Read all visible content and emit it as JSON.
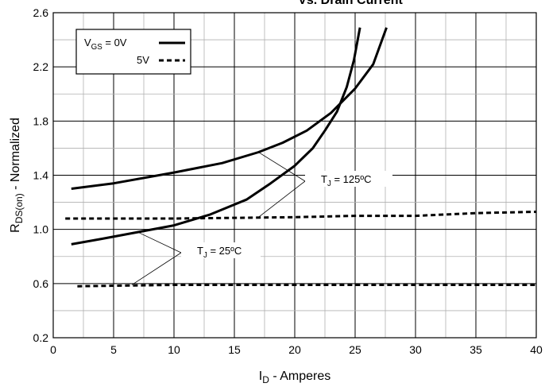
{
  "chart_data": {
    "type": "line",
    "title": "Vs. Drain Current",
    "xlabel": "I_D - Amperes",
    "ylabel": "R_DS(on) - Normalized",
    "xlim": [
      0,
      40
    ],
    "ylim": [
      0.2,
      2.6
    ],
    "x_ticks": [
      "0",
      "5",
      "10",
      "15",
      "20",
      "25",
      "30",
      "35",
      "40"
    ],
    "y_ticks": [
      "0.2",
      "0.6",
      "1.0",
      "1.4",
      "1.8",
      "2.2",
      "2.6"
    ],
    "grid": true,
    "legend": {
      "position": "top-left",
      "entries": [
        {
          "label": "V_GS = 0V",
          "style": "solid"
        },
        {
          "label": "5V",
          "style": "dashed"
        }
      ]
    },
    "annotations": [
      {
        "text": "T_J = 125ºC"
      },
      {
        "text": "T_J = 25ºC"
      }
    ],
    "series": [
      {
        "style": "solid",
        "group": "T_J = 125ºC",
        "vgs": "0V",
        "points": [
          [
            1.5,
            1.3
          ],
          [
            5,
            1.34
          ],
          [
            10,
            1.42
          ],
          [
            14,
            1.49
          ],
          [
            17,
            1.57
          ],
          [
            19,
            1.64
          ],
          [
            21,
            1.73
          ],
          [
            23,
            1.86
          ],
          [
            25,
            2.04
          ],
          [
            26.5,
            2.22
          ],
          [
            27.6,
            2.49
          ]
        ]
      },
      {
        "style": "solid",
        "group": "T_J = 25ºC",
        "vgs": "0V",
        "points": [
          [
            1.5,
            0.89
          ],
          [
            4,
            0.93
          ],
          [
            7,
            0.98
          ],
          [
            10,
            1.03
          ],
          [
            13,
            1.11
          ],
          [
            16,
            1.22
          ],
          [
            18,
            1.34
          ],
          [
            20,
            1.47
          ],
          [
            21.5,
            1.6
          ],
          [
            22.5,
            1.73
          ],
          [
            23.5,
            1.87
          ],
          [
            24.3,
            2.05
          ],
          [
            24.9,
            2.25
          ],
          [
            25.4,
            2.49
          ]
        ]
      },
      {
        "style": "dashed",
        "group": "T_J = 125ºC",
        "vgs": "5V",
        "points": [
          [
            1,
            1.08
          ],
          [
            10,
            1.08
          ],
          [
            20,
            1.09
          ],
          [
            25,
            1.1
          ],
          [
            30,
            1.1
          ],
          [
            35,
            1.12
          ],
          [
            40,
            1.13
          ]
        ]
      },
      {
        "style": "dashed",
        "group": "T_J = 25ºC",
        "vgs": "5V",
        "points": [
          [
            2,
            0.58
          ],
          [
            10,
            0.59
          ],
          [
            20,
            0.59
          ],
          [
            30,
            0.59
          ],
          [
            40,
            0.59
          ]
        ]
      }
    ]
  }
}
